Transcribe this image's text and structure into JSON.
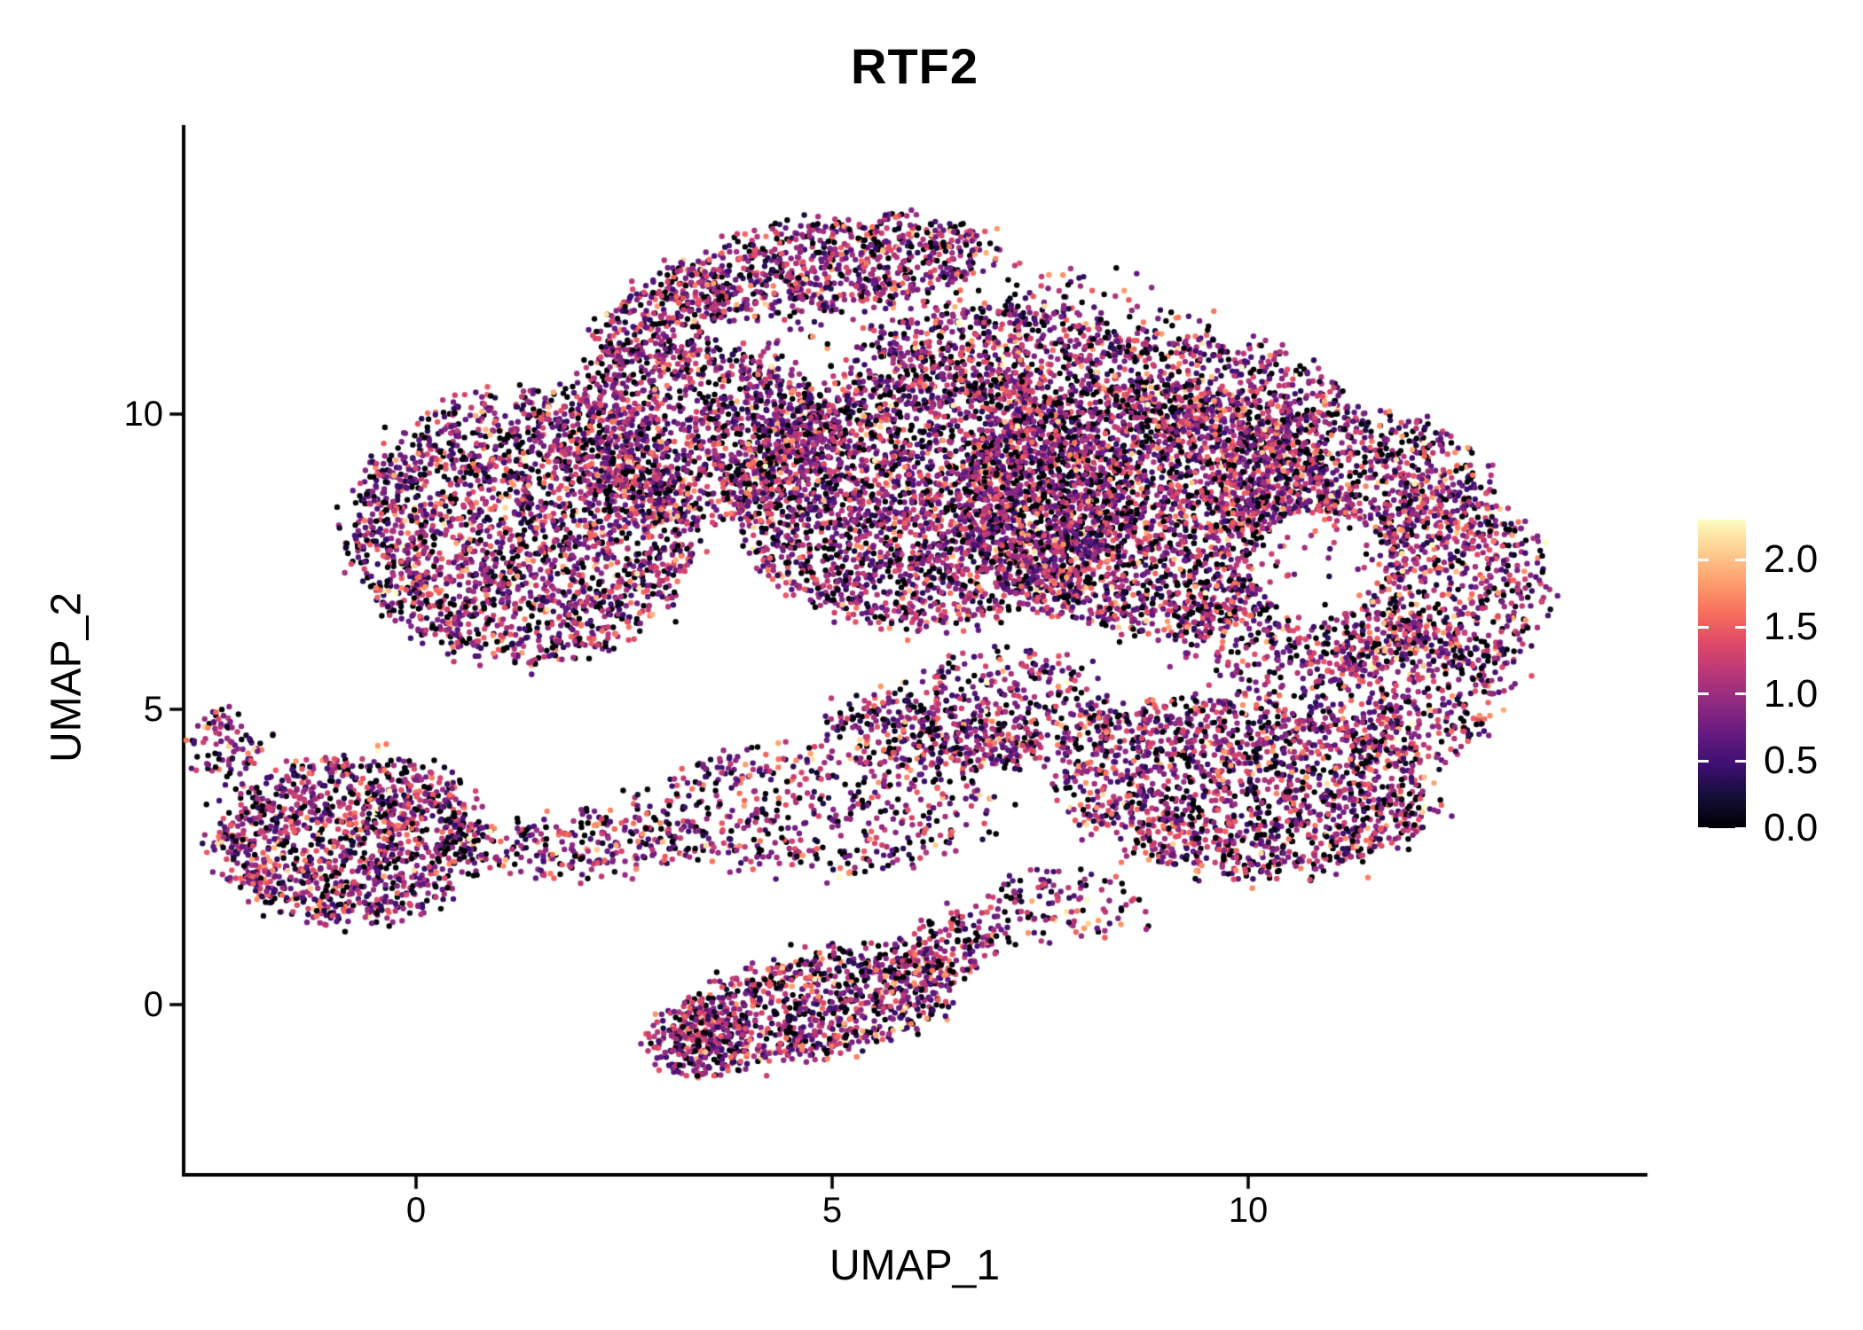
{
  "chart_data": {
    "type": "scatter",
    "title": "RTF2",
    "xlabel": "UMAP_1",
    "ylabel": "UMAP_2",
    "xlim": [
      -2.8,
      14.8
    ],
    "ylim": [
      -2.9,
      14.9
    ],
    "xticks": [
      0,
      5,
      10
    ],
    "yticks": [
      0,
      5,
      10
    ],
    "xtick_labels": [
      "0",
      "5",
      "10"
    ],
    "ytick_labels": [
      "0",
      "5",
      "10"
    ],
    "grid": false,
    "background": "#ffffff",
    "axis_color": "#000000",
    "text_color": "#000000",
    "point_radius_px": 3.2,
    "seed": 42,
    "legend": {
      "position": "right",
      "ticks": [
        "2.0",
        "1.5",
        "1.0",
        "0.5",
        "0.0"
      ],
      "tick_values": [
        2.0,
        1.5,
        1.0,
        0.5,
        0.0
      ],
      "range": [
        0.0,
        2.3
      ]
    },
    "colormap": {
      "name": "magma",
      "stops": [
        {
          "pos": 0.0,
          "color": "#000004"
        },
        {
          "pos": 0.1,
          "color": "#140e36"
        },
        {
          "pos": 0.2,
          "color": "#3b0f70"
        },
        {
          "pos": 0.3,
          "color": "#641a80"
        },
        {
          "pos": 0.4,
          "color": "#8c2981"
        },
        {
          "pos": 0.5,
          "color": "#b73779"
        },
        {
          "pos": 0.6,
          "color": "#de4968"
        },
        {
          "pos": 0.7,
          "color": "#f7705c"
        },
        {
          "pos": 0.8,
          "color": "#fe9f6d"
        },
        {
          "pos": 0.9,
          "color": "#fecf92"
        },
        {
          "pos": 1.0,
          "color": "#fcfdbf"
        }
      ]
    },
    "value_distribution": {
      "zero_frac": 0.17,
      "mean": 0.95,
      "sd": 0.5,
      "min": 0.02,
      "max": 2.3
    },
    "clusters": [
      {
        "cx": 1.3,
        "cy": 8.1,
        "rx": 2.1,
        "ry": 2.3,
        "rot": -10,
        "n": 2400
      },
      {
        "cx": 3.3,
        "cy": 9.7,
        "rx": 1.6,
        "ry": 1.5,
        "rot": 0,
        "n": 1100
      },
      {
        "cx": 6.2,
        "cy": 8.6,
        "rx": 2.4,
        "ry": 2.2,
        "rot": 0,
        "n": 2800
      },
      {
        "cx": 8.8,
        "cy": 8.4,
        "rx": 2.3,
        "ry": 2.1,
        "rot": 0,
        "n": 2600
      },
      {
        "cx": 11.3,
        "cy": 8.6,
        "rx": 1.7,
        "ry": 1.5,
        "rot": -20,
        "n": 1000
      },
      {
        "cx": 12.5,
        "cy": 7.2,
        "rx": 1.1,
        "ry": 1.6,
        "rot": 10,
        "n": 550
      },
      {
        "cx": 4.9,
        "cy": 12.5,
        "rx": 2.1,
        "ry": 0.75,
        "rot": 12,
        "n": 850
      },
      {
        "cx": 2.9,
        "cy": 11.6,
        "rx": 0.9,
        "ry": 0.55,
        "rot": 35,
        "n": 250
      },
      {
        "cx": 7.0,
        "cy": 11.1,
        "rx": 1.6,
        "ry": 0.8,
        "rot": 0,
        "n": 500
      },
      {
        "cx": 9.6,
        "cy": 10.4,
        "rx": 1.6,
        "ry": 0.9,
        "rot": -15,
        "n": 500
      },
      {
        "cx": 9.9,
        "cy": 3.7,
        "rx": 2.3,
        "ry": 1.5,
        "rot": -10,
        "n": 1700
      },
      {
        "cx": 11.9,
        "cy": 5.3,
        "rx": 1.2,
        "ry": 1.2,
        "rot": 0,
        "n": 450
      },
      {
        "cx": 7.0,
        "cy": 5.0,
        "rx": 1.3,
        "ry": 0.9,
        "rot": 20,
        "n": 380
      },
      {
        "cx": -0.8,
        "cy": 2.8,
        "rx": 1.6,
        "ry": 1.4,
        "rot": 10,
        "n": 1300
      },
      {
        "cx": -2.3,
        "cy": 4.4,
        "rx": 0.4,
        "ry": 0.55,
        "rot": 0,
        "n": 90
      },
      {
        "cx": 2.0,
        "cy": 2.7,
        "rx": 1.5,
        "ry": 0.55,
        "rot": 5,
        "n": 260
      },
      {
        "cx": 4.8,
        "cy": 3.3,
        "rx": 2.2,
        "ry": 1.1,
        "rot": 0,
        "n": 520
      },
      {
        "cx": 6.2,
        "cy": 4.6,
        "rx": 1.3,
        "ry": 0.6,
        "rot": -15,
        "n": 260
      },
      {
        "cx": 4.8,
        "cy": 0.0,
        "rx": 1.8,
        "ry": 0.85,
        "rot": 18,
        "n": 950
      },
      {
        "cx": 3.4,
        "cy": -0.6,
        "rx": 0.6,
        "ry": 0.6,
        "rot": 0,
        "n": 220
      },
      {
        "cx": 6.4,
        "cy": 1.0,
        "rx": 0.7,
        "ry": 0.5,
        "rot": 30,
        "n": 150
      },
      {
        "cx": 6.9,
        "cy": 9.9,
        "rx": 3.6,
        "ry": 2.6,
        "rot": 0,
        "n": 700
      },
      {
        "cx": 10.6,
        "cy": 6.3,
        "rx": 1.5,
        "ry": 1.0,
        "rot": 0,
        "n": 450
      },
      {
        "cx": 7.8,
        "cy": 1.7,
        "rx": 1.0,
        "ry": 0.6,
        "rot": 0,
        "n": 130
      }
    ],
    "holes": [
      {
        "cx": 10.85,
        "cy": 7.45,
        "rx": 0.8,
        "ry": 0.9
      }
    ]
  }
}
